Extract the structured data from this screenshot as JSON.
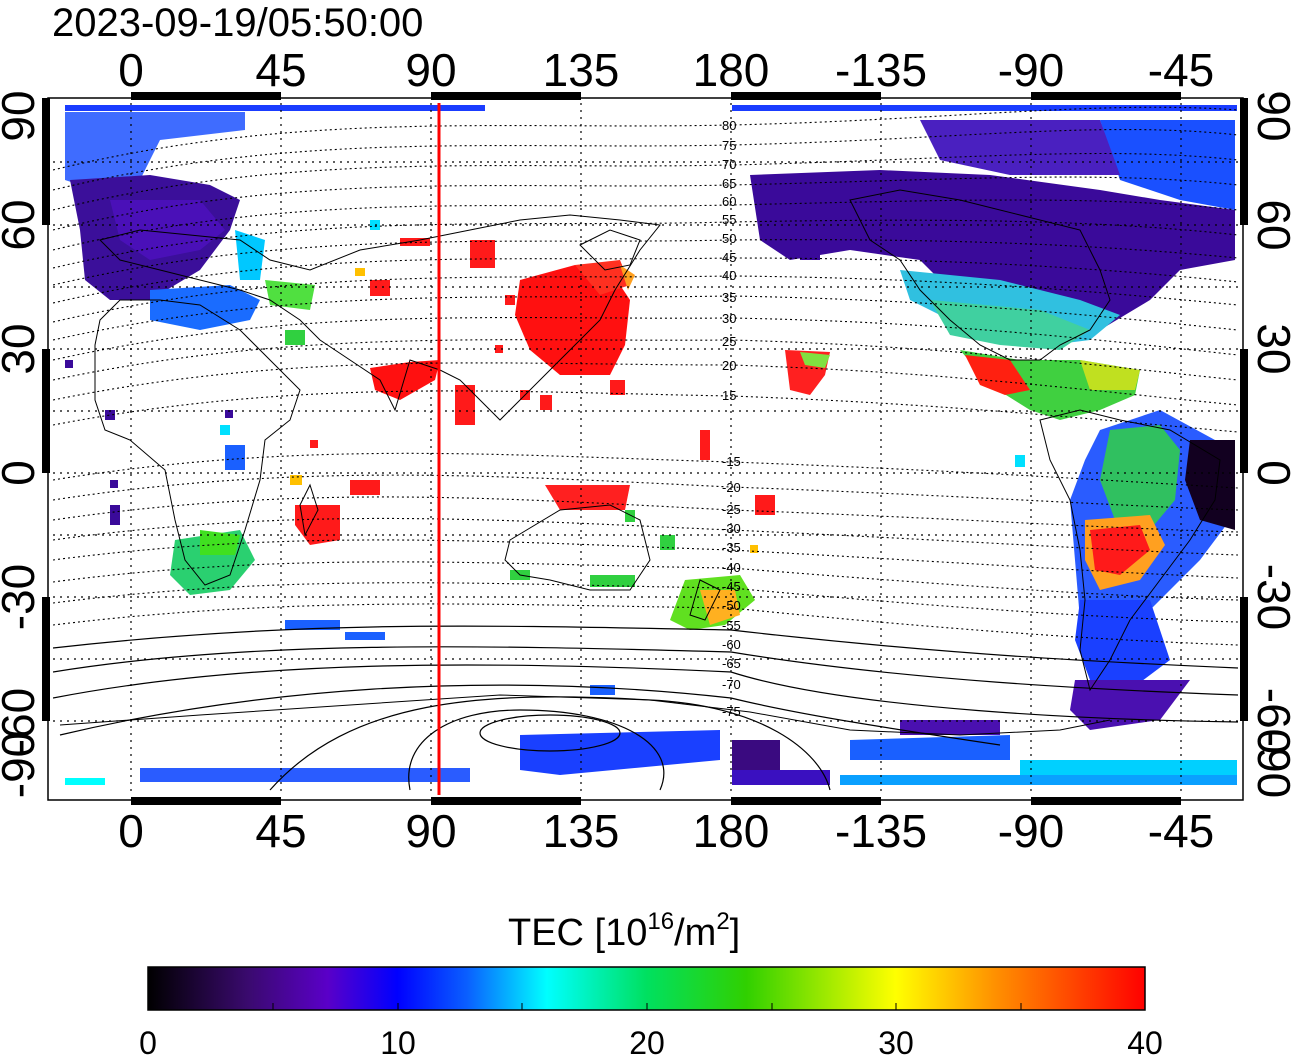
{
  "title": "2023-09-19/05:50:00",
  "map": {
    "lon_ticks": [
      "0",
      "45",
      "90",
      "135",
      "180",
      "-135",
      "-90",
      "-45"
    ],
    "lat_ticks": [
      "90",
      "60",
      "30",
      "0",
      "-30",
      "-60",
      "-90"
    ],
    "grid": "dotted",
    "subsolar_longitude": 92,
    "subsolar_line_color": "#ff0000",
    "mlat_labels": [
      "80",
      "75",
      "70",
      "65",
      "60",
      "55",
      "50",
      "45",
      "40",
      "35",
      "30",
      "25",
      "20",
      "15",
      "-15",
      "-20",
      "-25",
      "-30",
      "-35",
      "-40",
      "-45",
      "-50",
      "-55",
      "-60",
      "-65",
      "-70",
      "-75"
    ]
  },
  "colorbar": {
    "label_main": "TEC  [10",
    "label_exp1": "16",
    "label_mid": "/m",
    "label_exp2": "2",
    "label_end": "]",
    "ticks": [
      "0",
      "10",
      "20",
      "30",
      "40"
    ],
    "range": [
      0,
      40
    ],
    "colors": [
      "#000000",
      "#3a0a6e",
      "#5a00c8",
      "#0000ff",
      "#0a5fff",
      "#00ffff",
      "#00e060",
      "#30d000",
      "#ffff00",
      "#ff9000",
      "#ff0000"
    ]
  }
}
